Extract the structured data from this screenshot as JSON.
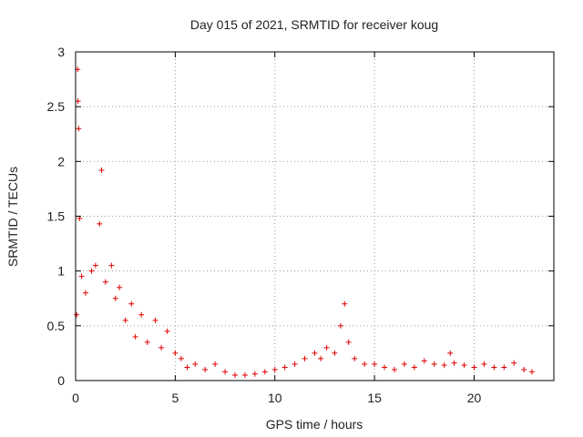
{
  "chart_data": {
    "type": "scatter",
    "title": "Day 015 of 2021, SRMTID for receiver koug",
    "xlabel": "GPS time / hours",
    "ylabel": "SRMTID / TECUs",
    "xlim": [
      0,
      24
    ],
    "ylim": [
      0,
      3
    ],
    "xticks": [
      0,
      5,
      10,
      15,
      20
    ],
    "xtick_labels": [
      "0",
      "5",
      "10",
      "15",
      "20"
    ],
    "yticks": [
      0,
      0.5,
      1,
      1.5,
      2,
      2.5,
      3
    ],
    "ytick_labels": [
      "0",
      "0.5",
      "1",
      "1.5",
      "2",
      "2.5",
      "3"
    ],
    "grid": true,
    "marker": "plus",
    "series": [
      {
        "name": "SRMTID",
        "color": "#e00000",
        "description": "dense point cloud; values below give the approximate envelope",
        "x": [
          0.05,
          0.1,
          0.12,
          0.15,
          0.2,
          0.3,
          0.5,
          0.8,
          1.0,
          1.2,
          1.3,
          1.5,
          1.8,
          2.0,
          2.2,
          2.5,
          2.8,
          3.0,
          3.3,
          3.6,
          4.0,
          4.3,
          4.6,
          5.0,
          5.3,
          5.6,
          6.0,
          6.5,
          7.0,
          7.5,
          8.0,
          8.5,
          9.0,
          9.5,
          10.0,
          10.5,
          11.0,
          11.5,
          12.0,
          12.3,
          12.6,
          13.0,
          13.3,
          13.5,
          13.7,
          14.0,
          14.5,
          15.0,
          15.5,
          16.0,
          16.5,
          17.0,
          17.5,
          18.0,
          18.5,
          18.8,
          19.0,
          19.5,
          20.0,
          20.5,
          21.0,
          21.5,
          22.0,
          22.5,
          22.9
        ],
        "values": [
          0.6,
          2.84,
          2.55,
          2.3,
          1.48,
          0.95,
          0.8,
          1.0,
          1.05,
          1.43,
          1.92,
          0.9,
          1.05,
          0.75,
          0.85,
          0.55,
          0.7,
          0.4,
          0.6,
          0.35,
          0.55,
          0.3,
          0.45,
          0.25,
          0.2,
          0.12,
          0.15,
          0.1,
          0.15,
          0.08,
          0.05,
          0.05,
          0.06,
          0.08,
          0.1,
          0.12,
          0.15,
          0.2,
          0.25,
          0.2,
          0.3,
          0.25,
          0.5,
          0.7,
          0.35,
          0.2,
          0.15,
          0.15,
          0.12,
          0.1,
          0.15,
          0.12,
          0.18,
          0.15,
          0.14,
          0.25,
          0.16,
          0.14,
          0.12,
          0.15,
          0.12,
          0.12,
          0.16,
          0.1,
          0.08
        ]
      }
    ]
  }
}
